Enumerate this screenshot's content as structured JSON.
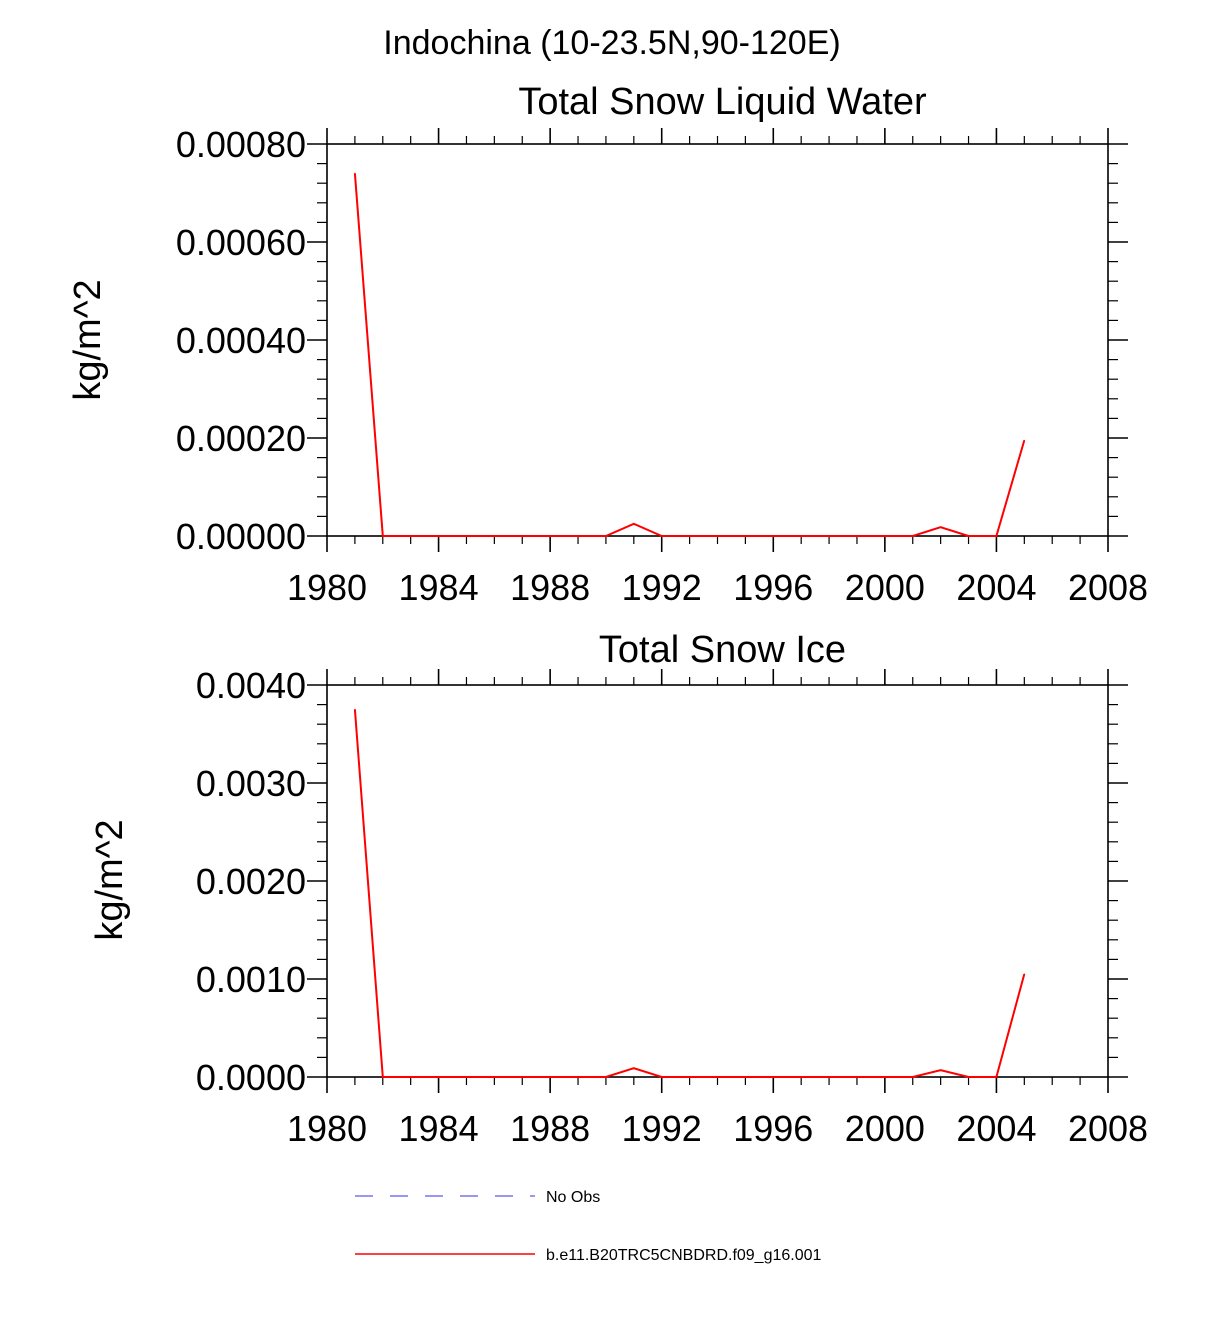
{
  "page_title": "Indochina (10-23.5N,90-120E)",
  "colors": {
    "model_line": "#ff0000",
    "obs_line": "#7777ee",
    "axis": "#000000"
  },
  "chart_data": [
    {
      "type": "line",
      "title": "Total Snow Liquid Water",
      "xlabel": "",
      "ylabel": "kg/m^2",
      "xlim": [
        1980,
        2008
      ],
      "ylim": [
        0,
        0.0008
      ],
      "x_ticks": [
        1980,
        1984,
        1988,
        1992,
        1996,
        2000,
        2004,
        2008
      ],
      "x_tick_labels": [
        "1980",
        "1984",
        "1988",
        "1992",
        "1996",
        "2000",
        "2004",
        "2008"
      ],
      "y_ticks": [
        0,
        0.0002,
        0.0004,
        0.0006,
        0.0008
      ],
      "y_tick_labels": [
        "0.00000",
        "0.00020",
        "0.00040",
        "0.00060",
        "0.00080"
      ],
      "series": [
        {
          "name": "b.e11.B20TRC5CNBDRD.f09_g16.001",
          "x": [
            1981,
            1982,
            1983,
            1984,
            1985,
            1986,
            1987,
            1988,
            1989,
            1990,
            1991,
            1992,
            1993,
            1994,
            1995,
            1996,
            1997,
            1998,
            1999,
            2000,
            2001,
            2002,
            2003,
            2004,
            2005
          ],
          "values": [
            0.00074,
            0,
            0,
            0,
            0,
            0,
            0,
            0,
            0,
            0,
            2.5e-05,
            0,
            0,
            0,
            0,
            0,
            0,
            0,
            0,
            0,
            0,
            1.8e-05,
            0,
            0,
            0.000195
          ]
        }
      ]
    },
    {
      "type": "line",
      "title": "Total Snow Ice",
      "xlabel": "",
      "ylabel": "kg/m^2",
      "xlim": [
        1980,
        2008
      ],
      "ylim": [
        0,
        0.004
      ],
      "x_ticks": [
        1980,
        1984,
        1988,
        1992,
        1996,
        2000,
        2004,
        2008
      ],
      "x_tick_labels": [
        "1980",
        "1984",
        "1988",
        "1992",
        "1996",
        "2000",
        "2004",
        "2008"
      ],
      "y_ticks": [
        0,
        0.001,
        0.002,
        0.003,
        0.004
      ],
      "y_tick_labels": [
        "0.0000",
        "0.0010",
        "0.0020",
        "0.0030",
        "0.0040"
      ],
      "series": [
        {
          "name": "b.e11.B20TRC5CNBDRD.f09_g16.001",
          "x": [
            1981,
            1982,
            1983,
            1984,
            1985,
            1986,
            1987,
            1988,
            1989,
            1990,
            1991,
            1992,
            1993,
            1994,
            1995,
            1996,
            1997,
            1998,
            1999,
            2000,
            2001,
            2002,
            2003,
            2004,
            2005
          ],
          "values": [
            0.00375,
            0,
            0,
            0,
            0,
            0,
            0,
            0,
            0,
            0,
            9e-05,
            0,
            0,
            0,
            0,
            0,
            0,
            0,
            0,
            0,
            0,
            7e-05,
            0,
            0,
            0.00105
          ]
        }
      ]
    }
  ],
  "legend": {
    "placement": "bottom-center",
    "entries": [
      {
        "label": "No Obs",
        "style": "dashed",
        "color": "#7777ee"
      },
      {
        "label": "b.e11.B20TRC5CNBDRD.f09_g16.001",
        "style": "solid",
        "color": "#ff0000"
      }
    ]
  }
}
